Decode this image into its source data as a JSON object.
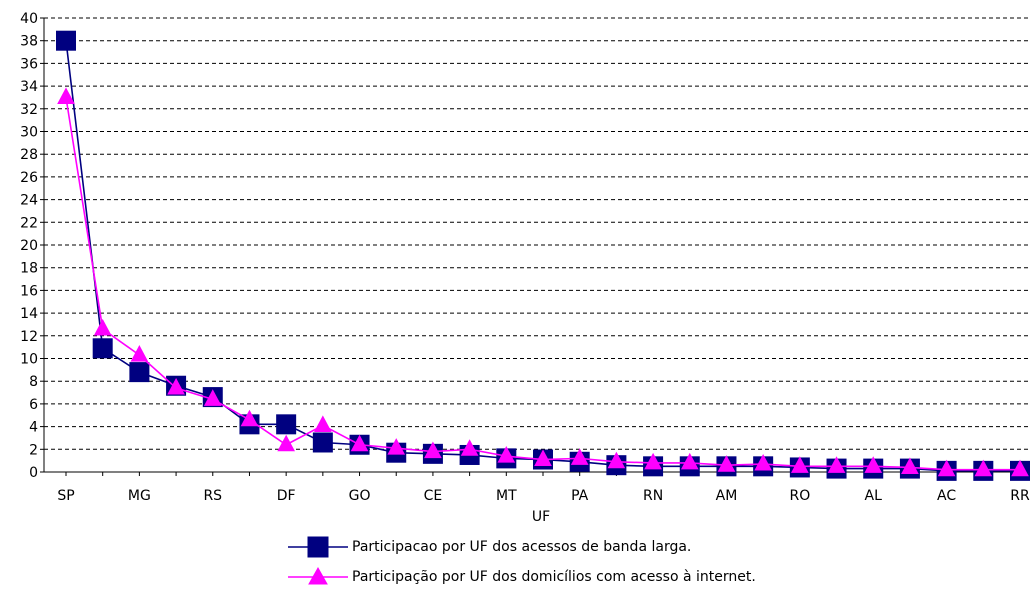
{
  "chart_data": {
    "type": "line",
    "xlabel": "UF",
    "ylabel": "",
    "ylim": [
      0,
      40
    ],
    "yticks": [
      0,
      2,
      4,
      6,
      8,
      10,
      12,
      14,
      16,
      18,
      20,
      22,
      24,
      26,
      28,
      30,
      32,
      34,
      36,
      38,
      40
    ],
    "grid": "horizontal dashed",
    "legend_position": "bottom",
    "categories": [
      "SP",
      "",
      "MG",
      "",
      "RS",
      "",
      "DF",
      "",
      "GO",
      "",
      "CE",
      "",
      "MT",
      "",
      "PA",
      "",
      "RN",
      "",
      "AM",
      "",
      "RO",
      "",
      "AL",
      "",
      "AC",
      "",
      "RR"
    ],
    "series": [
      {
        "name": "Participacao por UF dos acessos de banda larga.",
        "color": "#000080",
        "marker": "square",
        "values": [
          38,
          10.9,
          8.8,
          7.6,
          6.6,
          4.2,
          4.2,
          2.6,
          2.4,
          1.7,
          1.6,
          1.5,
          1.2,
          1.1,
          0.9,
          0.6,
          0.5,
          0.5,
          0.5,
          0.5,
          0.4,
          0.3,
          0.3,
          0.3,
          0.1,
          0.1,
          0.1
        ]
      },
      {
        "name": "Participação por UF dos domicílios com acesso à internet.",
        "color": "#ff00ff",
        "marker": "triangle",
        "values": [
          33,
          12.6,
          10.3,
          7.4,
          6.4,
          4.6,
          2.4,
          4.1,
          2.4,
          2.1,
          1.8,
          2.0,
          1.4,
          1.1,
          1.2,
          0.9,
          0.8,
          0.8,
          0.6,
          0.7,
          0.5,
          0.5,
          0.5,
          0.4,
          0.2,
          0.2,
          0.2
        ]
      }
    ]
  }
}
